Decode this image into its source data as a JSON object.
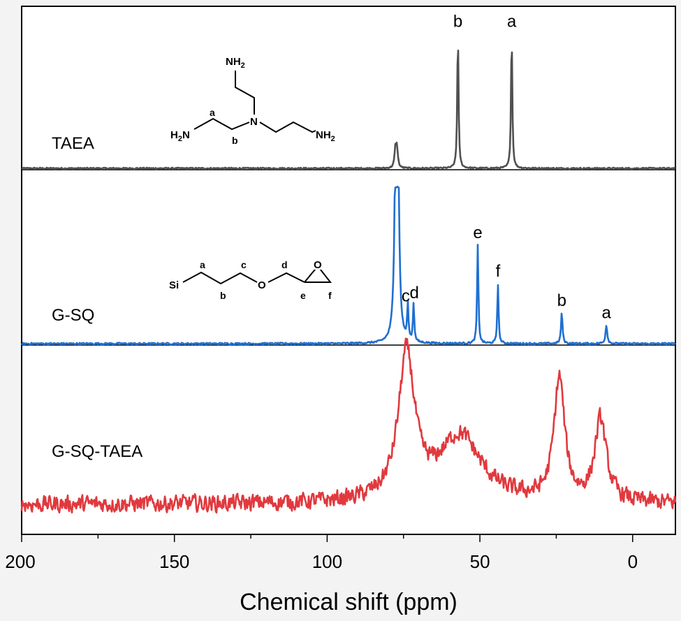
{
  "chart_data": {
    "type": "line",
    "xlabel": "Chemical shift (ppm)",
    "xlim": [
      200,
      -14
    ],
    "x_reversed": true,
    "xticks": [
      200,
      150,
      100,
      50,
      0
    ],
    "xtick_labels": [
      "200",
      "150",
      "100",
      "50",
      "0"
    ],
    "series": [
      {
        "name": "TAEA",
        "color": "#505050",
        "panel": 1,
        "baseline_noise": 0.005,
        "peaks": [
          {
            "label": "",
            "ppm": 77.4,
            "height": 0.13,
            "width": 0.35,
            "shape": "doublet"
          },
          {
            "label": "b",
            "ppm": 57.2,
            "height": 0.94,
            "width": 0.25
          },
          {
            "label": "a",
            "ppm": 39.6,
            "height": 0.94,
            "width": 0.25
          }
        ]
      },
      {
        "name": "G-SQ",
        "color": "#1f6fd1",
        "panel": 2,
        "baseline_noise": 0.006,
        "peaks": [
          {
            "label": "",
            "ppm": 77.2,
            "height": 1.0,
            "width": 0.45,
            "shape": "triplet"
          },
          {
            "label": "c",
            "ppm": 73.6,
            "height": 0.23,
            "width": 0.25
          },
          {
            "label": "d",
            "ppm": 71.7,
            "height": 0.25,
            "width": 0.25
          },
          {
            "label": "e",
            "ppm": 50.7,
            "height": 0.64,
            "width": 0.25
          },
          {
            "label": "f",
            "ppm": 44.1,
            "height": 0.39,
            "width": 0.25
          },
          {
            "label": "b",
            "ppm": 23.2,
            "height": 0.2,
            "width": 0.3
          },
          {
            "label": "a",
            "ppm": 8.6,
            "height": 0.12,
            "width": 0.35
          }
        ]
      },
      {
        "name": "G-SQ-TAEA",
        "color": "#e0393e",
        "panel": 3,
        "baseline_noise": 0.04,
        "peaks": [
          {
            "label": "",
            "ppm": 74.0,
            "height": 0.78,
            "width": 3.2
          },
          {
            "label": "",
            "ppm": 56.5,
            "height": 0.36,
            "width": 8.5
          },
          {
            "label": "",
            "ppm": 24.0,
            "height": 0.66,
            "width": 2.1
          },
          {
            "label": "",
            "ppm": 10.5,
            "height": 0.44,
            "width": 2.3
          }
        ]
      }
    ]
  },
  "structures": {
    "taea": {
      "atoms": [
        "NH",
        "2",
        "H",
        "2",
        "N",
        "NH",
        "2",
        "N"
      ],
      "labels": [
        "a",
        "b"
      ]
    },
    "gsq": {
      "atoms": [
        "Si",
        "O",
        "O"
      ],
      "labels": [
        "a",
        "b",
        "c",
        "d",
        "e",
        "f"
      ]
    }
  }
}
